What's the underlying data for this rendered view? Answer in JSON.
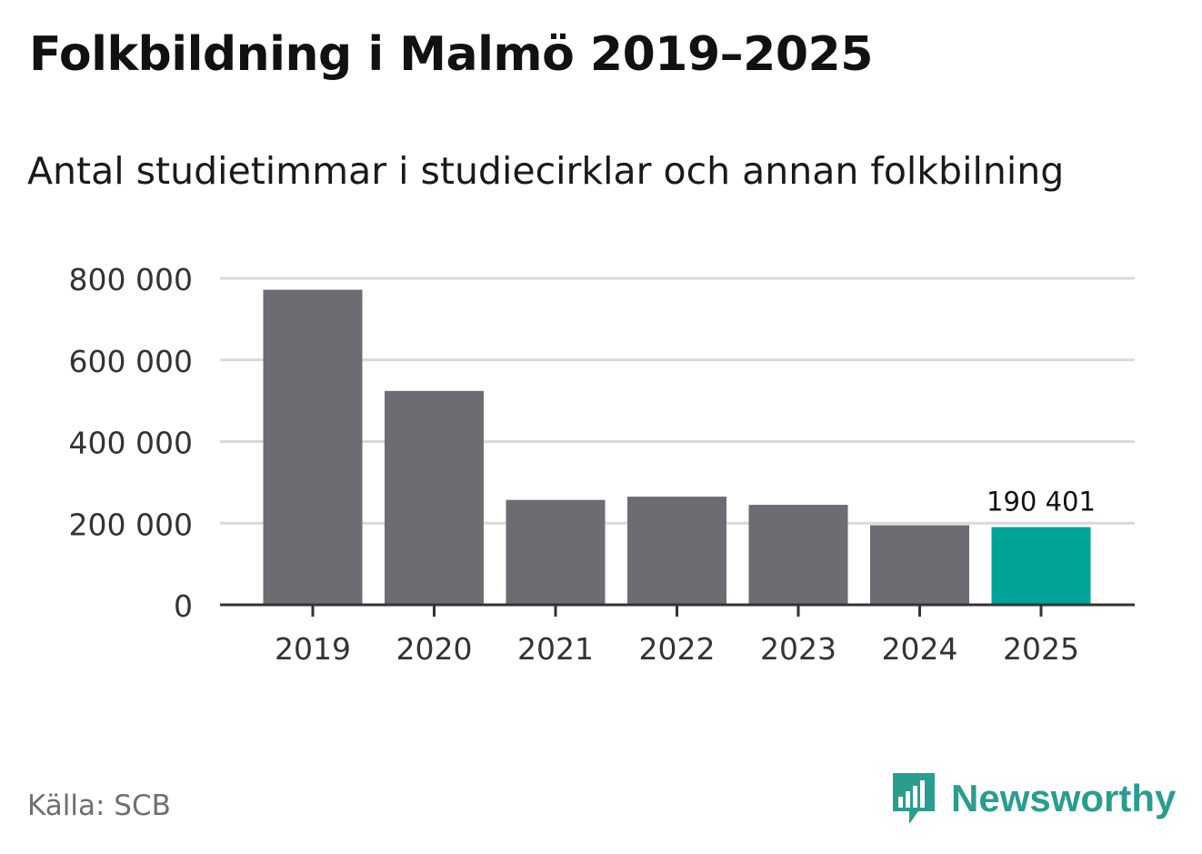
{
  "title": "Folkbildning i Malmö 2019–2025",
  "subtitle": "Antal studietimmar i studiecirklar och annan folkbilning",
  "source": "Källa: SCB",
  "logo_text": "Newsworthy",
  "colors": {
    "bar_default": "#6d6c72",
    "bar_highlight": "#00a398",
    "grid": "#d9d9d9",
    "axis": "#333333",
    "logo": "#2a9d8f"
  },
  "chart_data": {
    "type": "bar",
    "title": "Folkbildning i Malmö 2019–2025",
    "subtitle": "Antal studietimmar i studiecirklar och annan folkbilning",
    "xlabel": "",
    "ylabel": "",
    "categories": [
      "2019",
      "2020",
      "2021",
      "2022",
      "2023",
      "2024",
      "2025"
    ],
    "values": [
      772000,
      524000,
      257000,
      265000,
      245000,
      195000,
      190401
    ],
    "highlight_index": 6,
    "data_label": "190 401",
    "ylim": [
      0,
      800000
    ],
    "yticks": [
      0,
      200000,
      400000,
      600000,
      800000
    ],
    "ytick_labels": [
      "0",
      "200 000",
      "400 000",
      "600 000",
      "800 000"
    ],
    "grid": true
  }
}
